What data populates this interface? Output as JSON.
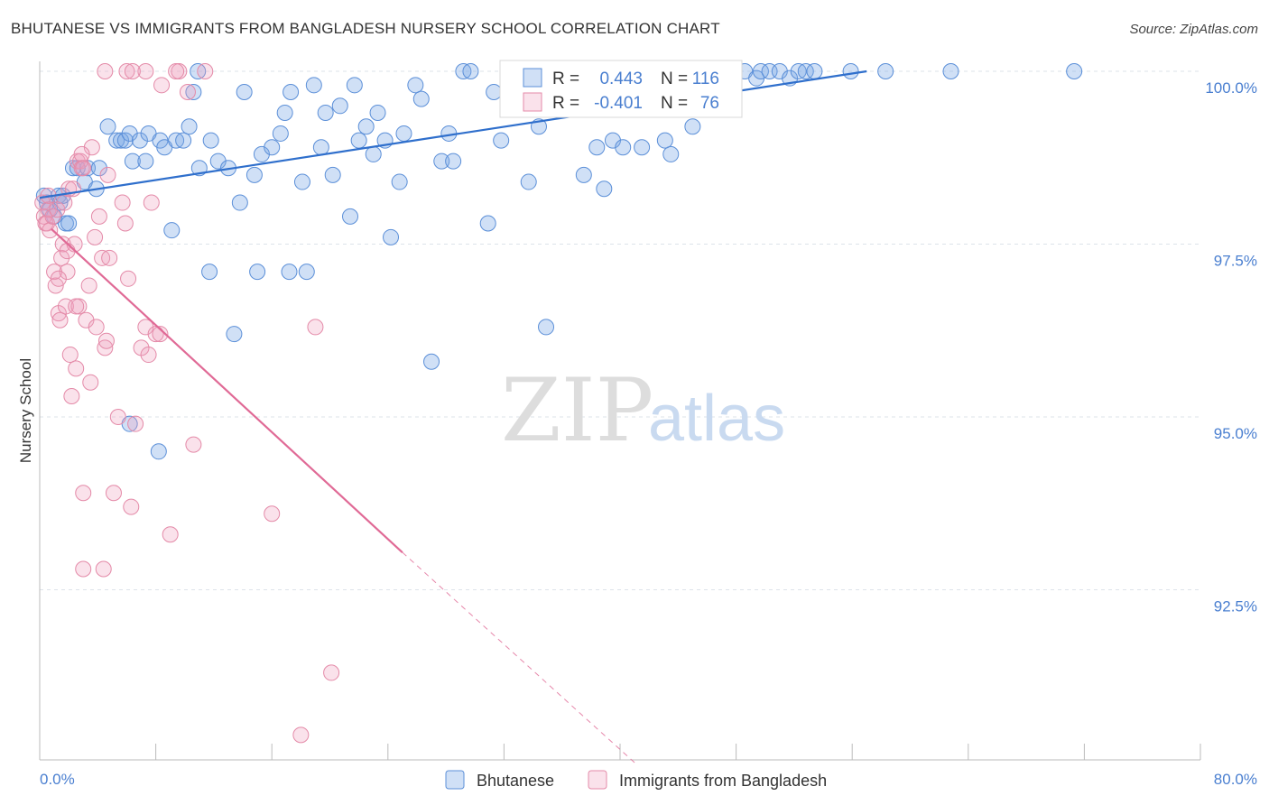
{
  "title": "BHUTANESE VS IMMIGRANTS FROM BANGLADESH NURSERY SCHOOL CORRELATION CHART",
  "source": "Source: ZipAtlas.com",
  "watermark": {
    "zip": "ZIP",
    "atlas": "atlas"
  },
  "colors": {
    "blue": "#5b8fd8",
    "blue_fill": "rgba(120,165,230,0.35)",
    "blue_line": "#2f6fcc",
    "pink": "#e48aa8",
    "pink_fill": "rgba(240,160,190,0.30)",
    "pink_line": "#e06a96",
    "tick_text": "#4a7fd0",
    "grid": "#dde3ea"
  },
  "chart_data": {
    "type": "scatter",
    "xlabel": "",
    "ylabel": "Nursery School",
    "xlim": [
      0,
      80
    ],
    "ylim": [
      90.0,
      100.2
    ],
    "x_tick_labels": [
      {
        "value": 0,
        "label": "0.0%"
      },
      {
        "value": 80,
        "label": "80.0%"
      }
    ],
    "y_ticks": [
      {
        "value": 100.0,
        "label": "100.0%"
      },
      {
        "value": 97.5,
        "label": "97.5%"
      },
      {
        "value": 95.0,
        "label": "95.0%"
      },
      {
        "value": 92.5,
        "label": "92.5%"
      }
    ],
    "grid": true,
    "legend_position": "top-center",
    "stats": [
      {
        "series": "Bhutanese",
        "r_label": "R =",
        "r": "0.443",
        "n_label": "N =",
        "n": "116"
      },
      {
        "series": "Immigrants from Bangladesh",
        "r_label": "R =",
        "r": "-0.401",
        "n_label": "N =",
        "n": "76"
      }
    ],
    "series": [
      {
        "name": "Bhutanese",
        "color": "blue",
        "trend": {
          "x": [
            0,
            57.0
          ],
          "y": [
            98.17,
            100.0
          ],
          "dashed_to": null
        },
        "points": [
          [
            0.3,
            98.2
          ],
          [
            0.5,
            98.1
          ],
          [
            0.7,
            98.0
          ],
          [
            1.0,
            97.9
          ],
          [
            1.3,
            98.2
          ],
          [
            1.4,
            98.1
          ],
          [
            1.6,
            98.2
          ],
          [
            1.8,
            97.8
          ],
          [
            2.0,
            97.8
          ],
          [
            2.3,
            98.6
          ],
          [
            2.6,
            98.6
          ],
          [
            3.1,
            98.4
          ],
          [
            3.3,
            98.6
          ],
          [
            3.9,
            98.3
          ],
          [
            4.1,
            98.6
          ],
          [
            4.7,
            99.2
          ],
          [
            5.3,
            99.0
          ],
          [
            5.6,
            99.0
          ],
          [
            5.9,
            99.0
          ],
          [
            6.2,
            99.1
          ],
          [
            6.4,
            98.7
          ],
          [
            6.9,
            99.0
          ],
          [
            7.3,
            98.7
          ],
          [
            7.5,
            99.1
          ],
          [
            8.3,
            99.0
          ],
          [
            8.6,
            98.9
          ],
          [
            9.1,
            97.7
          ],
          [
            9.4,
            99.0
          ],
          [
            9.9,
            99.0
          ],
          [
            10.3,
            99.2
          ],
          [
            10.6,
            99.7
          ],
          [
            10.9,
            100.0
          ],
          [
            11.0,
            98.6
          ],
          [
            11.8,
            99.0
          ],
          [
            12.3,
            98.7
          ],
          [
            13.0,
            98.6
          ],
          [
            13.8,
            98.1
          ],
          [
            14.1,
            99.7
          ],
          [
            14.8,
            98.5
          ],
          [
            15.3,
            98.8
          ],
          [
            16.0,
            98.9
          ],
          [
            16.6,
            99.1
          ],
          [
            16.9,
            99.4
          ],
          [
            17.3,
            99.7
          ],
          [
            18.1,
            98.4
          ],
          [
            18.4,
            97.1
          ],
          [
            18.9,
            99.8
          ],
          [
            19.4,
            98.9
          ],
          [
            19.7,
            99.4
          ],
          [
            20.2,
            98.5
          ],
          [
            20.7,
            99.5
          ],
          [
            21.4,
            97.9
          ],
          [
            21.7,
            99.8
          ],
          [
            22.0,
            99.0
          ],
          [
            22.5,
            99.2
          ],
          [
            23.0,
            98.8
          ],
          [
            23.3,
            99.4
          ],
          [
            23.8,
            99.0
          ],
          [
            24.2,
            97.6
          ],
          [
            24.8,
            98.4
          ],
          [
            25.1,
            99.1
          ],
          [
            25.9,
            99.8
          ],
          [
            26.3,
            99.6
          ],
          [
            27.0,
            95.8
          ],
          [
            27.7,
            98.7
          ],
          [
            28.2,
            99.1
          ],
          [
            29.2,
            100.0
          ],
          [
            29.7,
            100.0
          ],
          [
            30.9,
            97.8
          ],
          [
            31.3,
            99.7
          ],
          [
            31.8,
            99.0
          ],
          [
            32.3,
            100.0
          ],
          [
            33.7,
            98.4
          ],
          [
            34.4,
            99.2
          ],
          [
            35.9,
            99.6
          ],
          [
            36.3,
            100.0
          ],
          [
            36.8,
            99.8
          ],
          [
            37.5,
            98.5
          ],
          [
            38.4,
            98.9
          ],
          [
            38.9,
            98.3
          ],
          [
            39.2,
            100.0
          ],
          [
            39.5,
            99.0
          ],
          [
            40.2,
            98.9
          ],
          [
            41.5,
            98.9
          ],
          [
            42.4,
            100.0
          ],
          [
            43.1,
            99.0
          ],
          [
            43.5,
            98.8
          ],
          [
            44.1,
            99.5
          ],
          [
            45.0,
            99.2
          ],
          [
            45.5,
            99.5
          ],
          [
            46.4,
            99.8
          ],
          [
            47.2,
            100.0
          ],
          [
            48.6,
            100.0
          ],
          [
            49.4,
            99.9
          ],
          [
            49.7,
            100.0
          ],
          [
            50.3,
            100.0
          ],
          [
            51.0,
            100.0
          ],
          [
            51.7,
            99.9
          ],
          [
            52.3,
            100.0
          ],
          [
            52.8,
            100.0
          ],
          [
            53.4,
            100.0
          ],
          [
            55.9,
            100.0
          ],
          [
            58.3,
            100.0
          ],
          [
            62.8,
            100.0
          ],
          [
            71.3,
            100.0
          ],
          [
            34.9,
            96.3
          ],
          [
            11.7,
            97.1
          ],
          [
            8.2,
            94.5
          ],
          [
            13.4,
            96.2
          ],
          [
            6.2,
            94.9
          ],
          [
            17.2,
            97.1
          ],
          [
            15.0,
            97.1
          ],
          [
            28.5,
            98.7
          ]
        ]
      },
      {
        "name": "Immigrants from Bangladesh",
        "color": "pink",
        "trend": {
          "x": [
            0.8,
            25.0
          ],
          "y": [
            97.72,
            93.04
          ],
          "dashed_to": {
            "x": 41.0,
            "y": 90.0
          }
        },
        "points": [
          [
            0.2,
            98.1
          ],
          [
            0.3,
            97.9
          ],
          [
            0.4,
            97.8
          ],
          [
            0.5,
            97.8
          ],
          [
            0.6,
            98.0
          ],
          [
            0.7,
            97.7
          ],
          [
            0.9,
            97.9
          ],
          [
            1.0,
            97.1
          ],
          [
            1.1,
            96.9
          ],
          [
            1.2,
            98.0
          ],
          [
            1.3,
            96.5
          ],
          [
            1.4,
            96.4
          ],
          [
            1.5,
            97.3
          ],
          [
            1.6,
            97.5
          ],
          [
            1.7,
            98.1
          ],
          [
            1.8,
            96.6
          ],
          [
            1.9,
            97.1
          ],
          [
            2.0,
            98.3
          ],
          [
            2.1,
            95.9
          ],
          [
            2.2,
            95.3
          ],
          [
            2.3,
            98.3
          ],
          [
            2.4,
            97.5
          ],
          [
            2.5,
            95.7
          ],
          [
            2.6,
            98.7
          ],
          [
            2.7,
            96.6
          ],
          [
            2.8,
            98.7
          ],
          [
            2.9,
            98.6
          ],
          [
            3.0,
            93.9
          ],
          [
            3.2,
            96.4
          ],
          [
            3.4,
            96.9
          ],
          [
            3.5,
            95.5
          ],
          [
            3.6,
            98.9
          ],
          [
            3.8,
            97.6
          ],
          [
            3.9,
            96.3
          ],
          [
            4.1,
            97.9
          ],
          [
            4.3,
            97.3
          ],
          [
            4.5,
            96.0
          ],
          [
            4.6,
            96.1
          ],
          [
            4.8,
            97.3
          ],
          [
            5.1,
            93.9
          ],
          [
            5.4,
            95.0
          ],
          [
            5.7,
            98.1
          ],
          [
            5.9,
            97.8
          ],
          [
            6.1,
            97.0
          ],
          [
            6.3,
            93.7
          ],
          [
            6.6,
            94.9
          ],
          [
            7.0,
            96.0
          ],
          [
            7.3,
            96.3
          ],
          [
            7.5,
            95.9
          ],
          [
            7.7,
            98.1
          ],
          [
            8.0,
            96.2
          ],
          [
            8.3,
            96.2
          ],
          [
            9.0,
            93.3
          ],
          [
            9.6,
            100.0
          ],
          [
            10.2,
            99.7
          ],
          [
            10.6,
            94.6
          ],
          [
            11.4,
            100.0
          ],
          [
            16.0,
            93.6
          ],
          [
            18.0,
            90.4
          ],
          [
            19.0,
            96.3
          ],
          [
            20.1,
            91.3
          ],
          [
            3.0,
            92.8
          ],
          [
            4.4,
            92.8
          ],
          [
            6.0,
            100.0
          ],
          [
            7.3,
            100.0
          ],
          [
            8.4,
            99.8
          ],
          [
            6.4,
            100.0
          ],
          [
            9.4,
            100.0
          ],
          [
            4.5,
            100.0
          ],
          [
            2.9,
            98.8
          ],
          [
            1.3,
            97.0
          ],
          [
            0.6,
            98.2
          ],
          [
            1.9,
            97.4
          ],
          [
            3.0,
            98.6
          ],
          [
            4.7,
            98.5
          ],
          [
            2.5,
            96.6
          ]
        ]
      }
    ]
  },
  "legend_bottom": [
    {
      "label": "Bhutanese",
      "color": "blue"
    },
    {
      "label": "Immigrants from Bangladesh",
      "color": "pink"
    }
  ]
}
